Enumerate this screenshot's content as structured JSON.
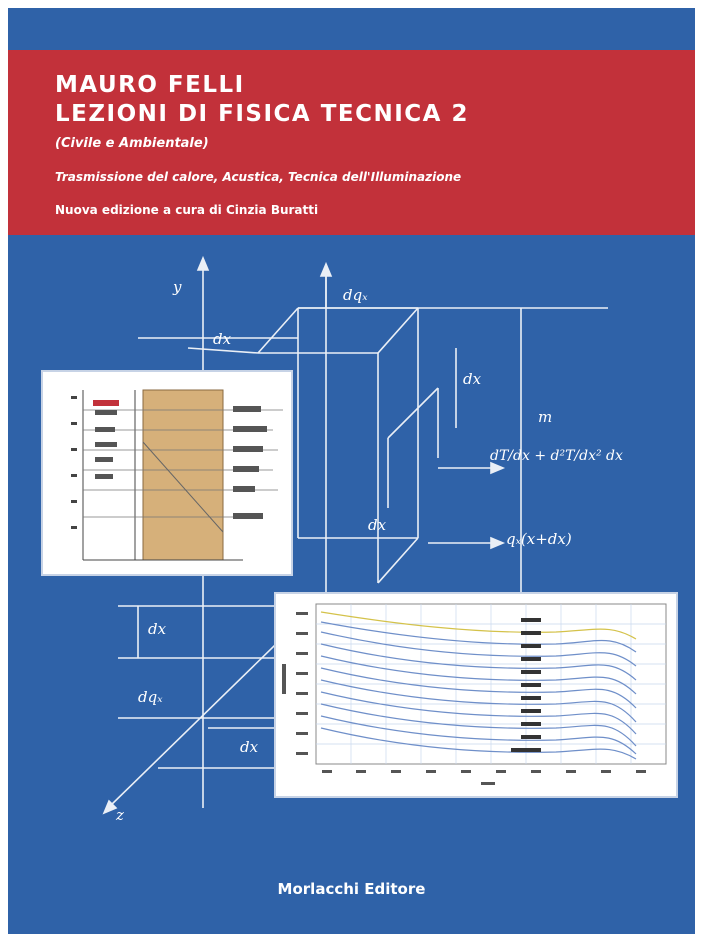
{
  "book": {
    "author": "MAURO FELLI",
    "title": "LEZIONI DI FISICA TECNICA 2",
    "subtitle": "(Civile e Ambientale)",
    "topics": "Trasmissione del calore, Acustica, Tecnica dell'Illuminazione",
    "edition": "Nuova edizione a cura di Cinzia Buratti",
    "publisher": "Morlacchi Editore"
  },
  "diagram_labels": {
    "y_axis": "y",
    "z_axis": "z",
    "dqx": "dqₓ",
    "dx_top": "dx",
    "dx_mid": "dx",
    "dx_left": "dx",
    "dx_bottom": "dx",
    "dqx_left": "dqₓ",
    "m": "m",
    "gradient": "dT/dx + d²T/dx² dx",
    "q_expr": "qₓ(x+dx)"
  },
  "colors": {
    "cover_blue": "#2f62a8",
    "banner_red": "#c2313a",
    "wall_tan": "#d6b07a",
    "grid_line": "#c9d8ee"
  }
}
